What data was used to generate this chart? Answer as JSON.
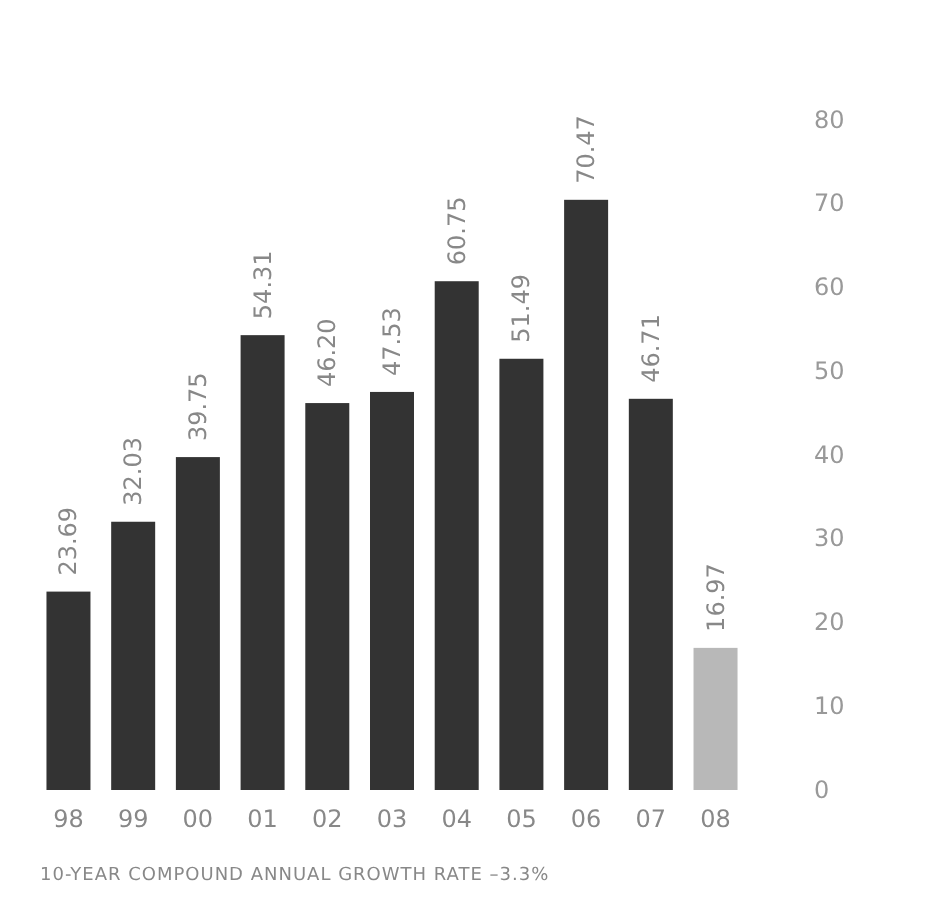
{
  "chart_data": {
    "type": "bar",
    "categories": [
      "98",
      "99",
      "00",
      "01",
      "02",
      "03",
      "04",
      "05",
      "06",
      "07",
      "08"
    ],
    "values": [
      23.69,
      32.03,
      39.75,
      54.31,
      46.2,
      47.53,
      60.75,
      51.49,
      70.47,
      46.71,
      16.97
    ],
    "value_labels": [
      "23.69",
      "32.03",
      "39.75",
      "54.31",
      "46.20",
      "47.53",
      "60.75",
      "51.49",
      "70.47",
      "46.71",
      "16.97"
    ],
    "colors": [
      "#333333",
      "#333333",
      "#333333",
      "#333333",
      "#333333",
      "#333333",
      "#333333",
      "#333333",
      "#333333",
      "#333333",
      "#b8b8b8"
    ],
    "ylim": [
      0,
      80
    ],
    "yticks": [
      0,
      10,
      20,
      30,
      40,
      50,
      60,
      70,
      80
    ],
    "grid": false,
    "annotations": [
      "10-YEAR COMPOUND ANNUAL GROWTH RATE –3.3%"
    ]
  }
}
